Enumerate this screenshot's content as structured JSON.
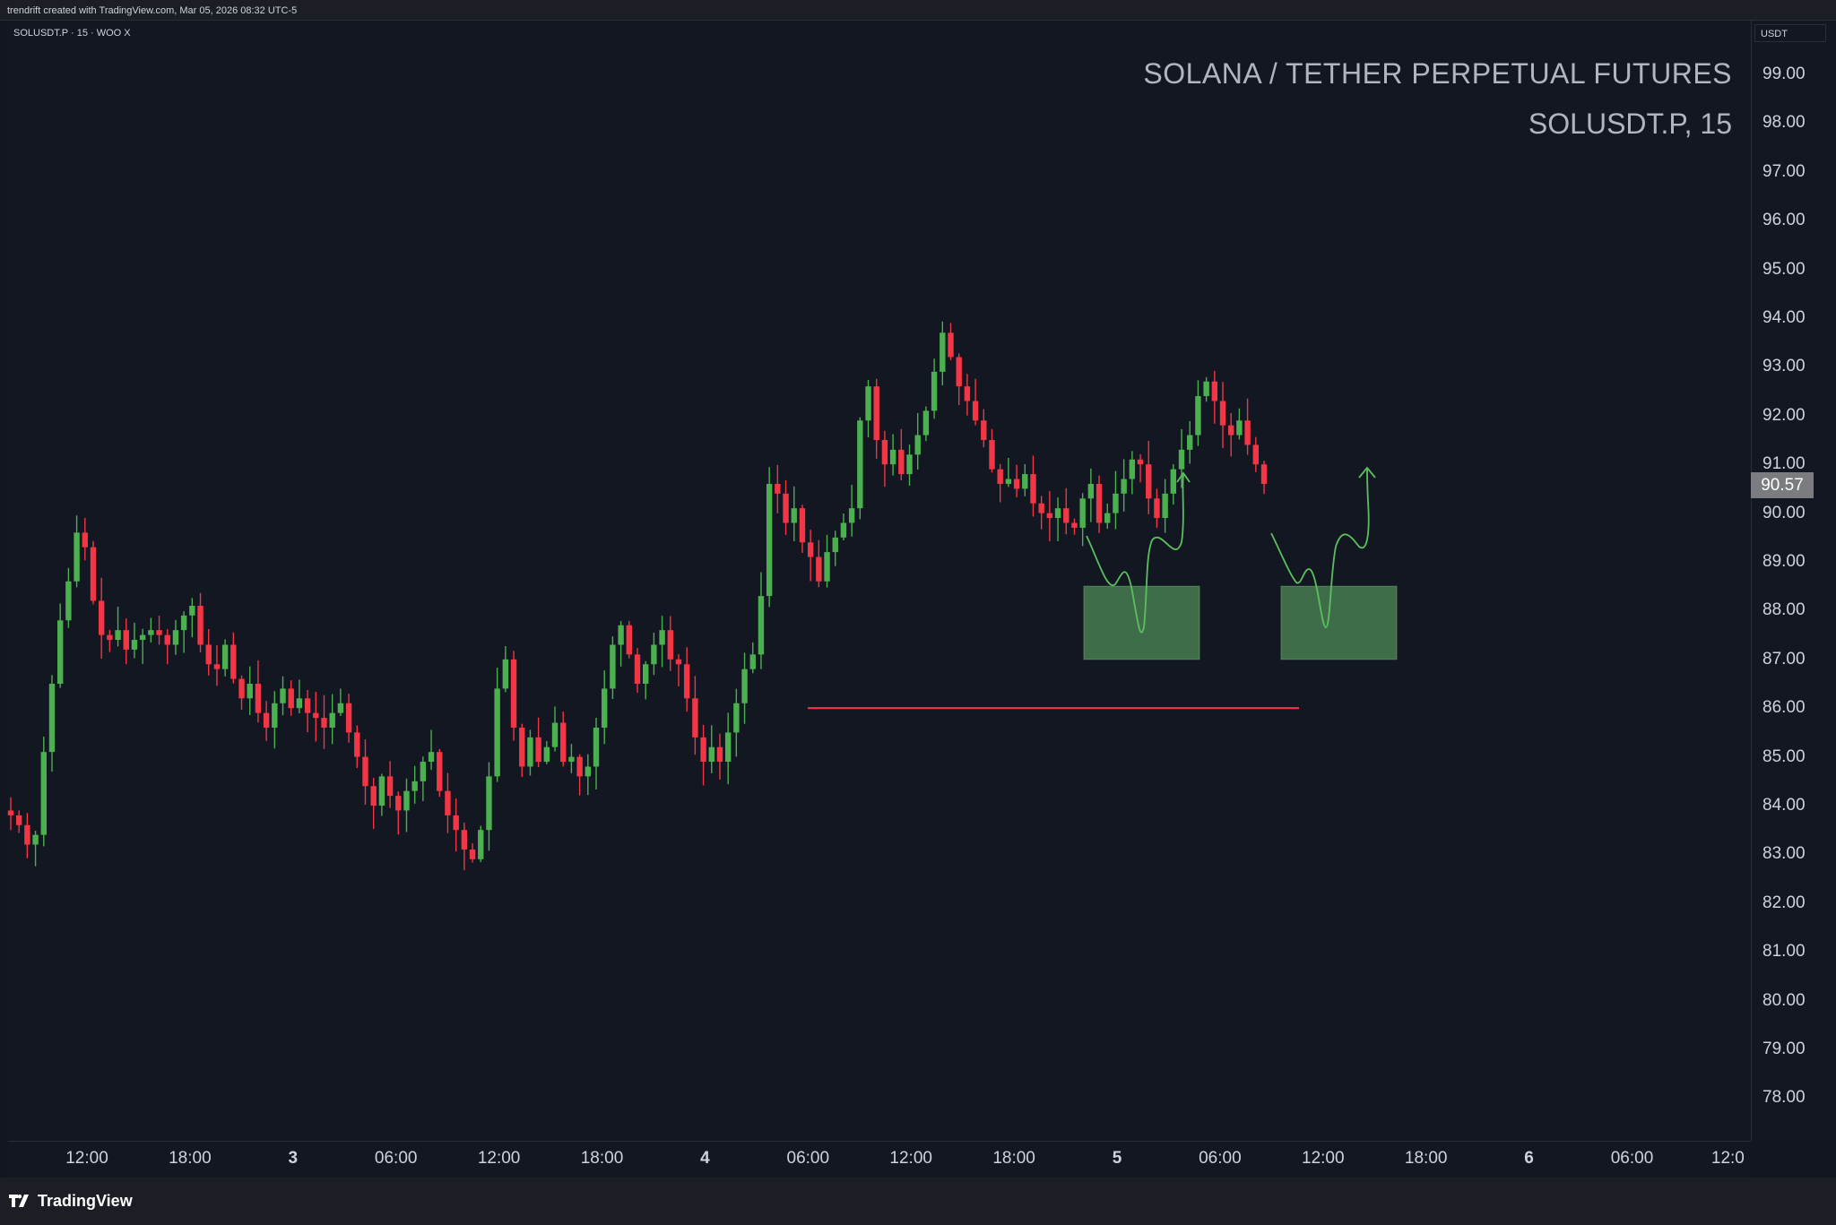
{
  "header": {
    "watermark_text": "trendrift created with TradingView.com, Mar 05, 2026 08:32 UTC-5",
    "symbol_line": "SOLUSDT.P · 15 · WOO X"
  },
  "brand": {
    "name": "TradingView"
  },
  "colors": {
    "up": "#26a69a",
    "up_green": "#4caf50",
    "down": "#f23645",
    "zone": "#4f8b56",
    "line": "#f23645",
    "path": "#5cbf5f"
  },
  "chart_data": {
    "type": "candlestick",
    "title": "SOLANA / TETHER PERPETUAL FUTURES",
    "subtitle": "SOLUSDT.P, 15",
    "currency": "USDT",
    "last_price": "90.57",
    "ylim": [
      77.0,
      100.0
    ],
    "y_ticks": [
      "99.00",
      "98.00",
      "97.00",
      "96.00",
      "95.00",
      "94.00",
      "93.00",
      "92.00",
      "91.00",
      "90.00",
      "89.00",
      "88.00",
      "87.00",
      "86.00",
      "85.00",
      "84.00",
      "83.00",
      "82.00",
      "81.00",
      "80.00",
      "79.00",
      "78.00"
    ],
    "x_ticks": [
      {
        "label": "12:00",
        "bold": false
      },
      {
        "label": "18:00",
        "bold": false
      },
      {
        "label": "3",
        "bold": true
      },
      {
        "label": "06:00",
        "bold": false
      },
      {
        "label": "12:00",
        "bold": false
      },
      {
        "label": "18:00",
        "bold": false
      },
      {
        "label": "4",
        "bold": true
      },
      {
        "label": "06:00",
        "bold": false
      },
      {
        "label": "12:00",
        "bold": false
      },
      {
        "label": "18:00",
        "bold": false
      },
      {
        "label": "5",
        "bold": true
      },
      {
        "label": "06:00",
        "bold": false
      },
      {
        "label": "12:00",
        "bold": false
      },
      {
        "label": "18:00",
        "bold": false
      },
      {
        "label": "6",
        "bold": true
      },
      {
        "label": "06:00",
        "bold": false
      },
      {
        "label": "12:0",
        "bold": false
      }
    ],
    "path_close": [
      83.8,
      83.6,
      83.2,
      83.4,
      85.1,
      86.5,
      87.8,
      88.6,
      89.6,
      89.3,
      88.2,
      87.5,
      87.4,
      87.6,
      87.2,
      87.4,
      87.5,
      87.6,
      87.5,
      87.3,
      87.6,
      87.9,
      88.1,
      87.3,
      86.9,
      86.8,
      87.3,
      86.6,
      86.2,
      86.5,
      85.9,
      85.6,
      86.1,
      86.4,
      86.0,
      86.2,
      85.9,
      85.8,
      85.6,
      85.9,
      86.1,
      85.5,
      85.0,
      84.4,
      84.0,
      84.6,
      84.2,
      83.9,
      84.3,
      84.5,
      84.9,
      85.1,
      84.3,
      83.8,
      83.5,
      83.1,
      82.9,
      83.5,
      84.6,
      86.4,
      87.0,
      85.6,
      84.8,
      85.4,
      84.9,
      85.2,
      85.7,
      84.9,
      85.0,
      84.6,
      84.8,
      85.6,
      86.4,
      87.3,
      87.7,
      87.1,
      86.5,
      86.9,
      87.3,
      87.6,
      87.0,
      86.9,
      86.2,
      85.4,
      84.9,
      85.2,
      84.9,
      85.5,
      86.1,
      86.8,
      87.1,
      88.3,
      90.6,
      90.4,
      89.8,
      90.1,
      89.4,
      89.1,
      88.6,
      89.2,
      89.5,
      89.8,
      90.1,
      91.9,
      92.6,
      91.5,
      91.0,
      91.3,
      90.8,
      91.2,
      91.6,
      92.1,
      92.9,
      93.7,
      93.2,
      92.6,
      92.3,
      91.9,
      91.5,
      90.9,
      90.6,
      90.7,
      90.5,
      90.8,
      90.2,
      90.0,
      89.9,
      90.1,
      89.8,
      89.7,
      90.3,
      90.6,
      89.8,
      90.0,
      90.4,
      90.7,
      91.1,
      91.0,
      90.3,
      89.9,
      90.4,
      90.9,
      91.3,
      91.6,
      92.4,
      92.7,
      92.3,
      91.8,
      91.6,
      91.9,
      91.4,
      91.0,
      90.6
    ],
    "annotations": {
      "support_line": {
        "price": 86.0
      },
      "demand_zones": [
        {
          "low": 87.0,
          "high": 88.5
        },
        {
          "low": 87.0,
          "high": 88.5
        }
      ],
      "projection_paths": 2
    }
  }
}
